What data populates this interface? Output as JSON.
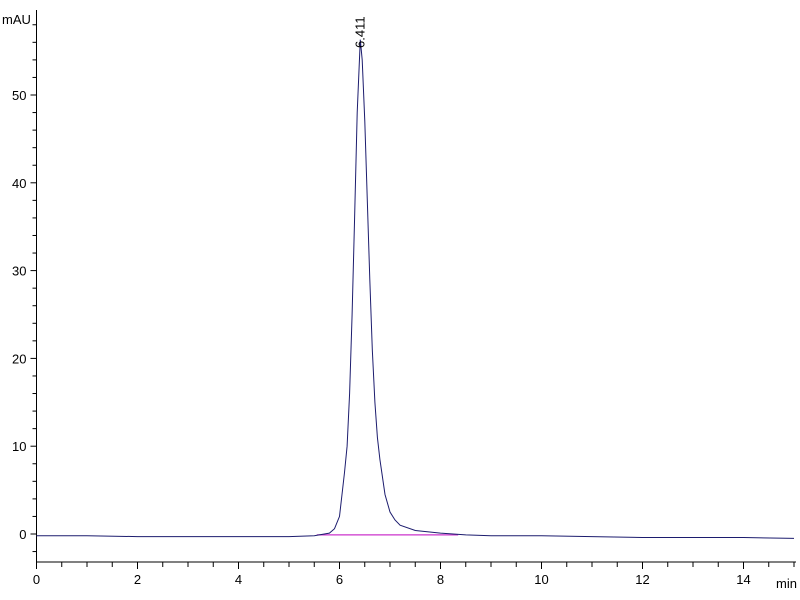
{
  "chart_data": {
    "type": "line",
    "title": "",
    "xlabel": "min",
    "ylabel": "mAU",
    "xlim": [
      0,
      15
    ],
    "ylim": [
      -2.5,
      59
    ],
    "x_ticks": [
      0,
      2,
      4,
      6,
      8,
      10,
      12,
      14
    ],
    "y_ticks": [
      0,
      10,
      20,
      30,
      40,
      50
    ],
    "grid": false,
    "colors": {
      "signal": "#1c1c6e",
      "baseline": "#cc33cc",
      "axis": "#000000"
    },
    "series": [
      {
        "x": [
          0,
          1,
          2,
          3,
          4,
          5,
          5.5,
          5.6,
          5.8,
          5.9,
          6.0,
          6.05,
          6.1,
          6.15,
          6.2,
          6.25,
          6.3,
          6.35,
          6.411,
          6.45,
          6.5,
          6.55,
          6.6,
          6.65,
          6.7,
          6.75,
          6.8,
          6.9,
          7.0,
          7.1,
          7.2,
          7.5,
          8.0,
          8.5,
          9,
          10,
          11,
          12,
          13,
          14,
          15
        ],
        "y": [
          -0.2,
          -0.2,
          -0.3,
          -0.3,
          -0.3,
          -0.3,
          -0.2,
          -0.1,
          0.1,
          0.6,
          2.0,
          4.5,
          7.0,
          10,
          16,
          25,
          36,
          48,
          56.3,
          54,
          47,
          38,
          29,
          21,
          15,
          11,
          8.5,
          4.5,
          2.5,
          1.6,
          1.0,
          0.4,
          0.1,
          -0.1,
          -0.2,
          -0.2,
          -0.3,
          -0.4,
          -0.4,
          -0.4,
          -0.5
        ]
      }
    ],
    "baseline": {
      "x": [
        5.55,
        8.35
      ],
      "y": [
        -0.1,
        -0.1
      ]
    },
    "peaks": [
      {
        "retention_time": 6.411,
        "label": "6.411"
      }
    ]
  }
}
